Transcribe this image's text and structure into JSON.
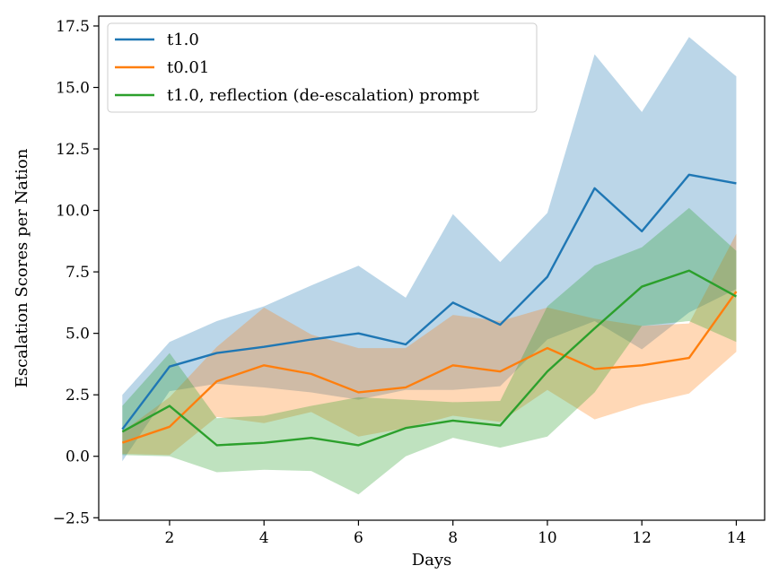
{
  "chart_data": {
    "type": "line",
    "title": "",
    "xlabel": "Days",
    "ylabel": "Escalation Scores per Nation",
    "xlim": [
      0.5,
      14.6
    ],
    "ylim": [
      -2.6,
      17.9
    ],
    "x": [
      1,
      2,
      3,
      4,
      5,
      6,
      7,
      8,
      9,
      10,
      11,
      12,
      13,
      14
    ],
    "xticks": [
      2,
      4,
      6,
      8,
      10,
      12,
      14
    ],
    "xtick_labels": [
      "2",
      "4",
      "6",
      "8",
      "10",
      "12",
      "14"
    ],
    "yticks": [
      -2.5,
      0.0,
      2.5,
      5.0,
      7.5,
      10.0,
      12.5,
      15.0,
      17.5
    ],
    "ytick_labels": [
      "−2.5",
      "0.0",
      "2.5",
      "5.0",
      "7.5",
      "10.0",
      "12.5",
      "15.0",
      "17.5"
    ],
    "grid": false,
    "legend_position": "top-left",
    "series": [
      {
        "name": "t1.0",
        "color": "#1f77b4",
        "band_color": "#1f77b4",
        "values": [
          1.1,
          3.65,
          4.2,
          4.45,
          4.75,
          5.0,
          4.55,
          6.25,
          5.35,
          7.3,
          10.9,
          9.15,
          11.45,
          11.1
        ],
        "upper": [
          2.5,
          4.65,
          5.5,
          6.1,
          6.95,
          7.75,
          6.45,
          9.85,
          7.9,
          9.9,
          16.35,
          14.0,
          17.05,
          15.45
        ],
        "lower": [
          -0.2,
          2.65,
          2.95,
          2.8,
          2.6,
          2.3,
          2.7,
          2.7,
          2.85,
          4.75,
          5.5,
          4.35,
          5.85,
          6.8
        ]
      },
      {
        "name": "t0.01",
        "color": "#ff7f0e",
        "band_color": "#ff7f0e",
        "values": [
          0.55,
          1.2,
          3.05,
          3.7,
          3.35,
          2.6,
          2.8,
          3.7,
          3.45,
          4.4,
          3.55,
          3.7,
          4.0,
          6.7
        ],
        "upper": [
          1.0,
          2.4,
          4.45,
          6.05,
          4.95,
          4.4,
          4.4,
          5.75,
          5.5,
          6.05,
          5.6,
          5.3,
          5.4,
          9.05
        ],
        "lower": [
          0.1,
          0.05,
          1.6,
          1.35,
          1.8,
          0.8,
          1.15,
          1.65,
          1.4,
          2.7,
          1.5,
          2.1,
          2.55,
          4.25
        ]
      },
      {
        "name": "t1.0, reflection (de-escalation) prompt",
        "color": "#2ca02c",
        "band_color": "#2ca02c",
        "values": [
          1.0,
          2.05,
          0.45,
          0.55,
          0.75,
          0.45,
          1.15,
          1.45,
          1.25,
          3.45,
          5.2,
          6.9,
          7.55,
          6.5
        ],
        "upper": [
          2.05,
          4.2,
          1.55,
          1.65,
          2.05,
          2.4,
          2.3,
          2.2,
          2.25,
          6.1,
          7.75,
          8.5,
          10.1,
          8.35
        ],
        "lower": [
          0.05,
          0.0,
          -0.65,
          -0.55,
          -0.6,
          -1.55,
          0.0,
          0.75,
          0.35,
          0.8,
          2.6,
          5.3,
          5.5,
          4.65
        ]
      }
    ]
  }
}
